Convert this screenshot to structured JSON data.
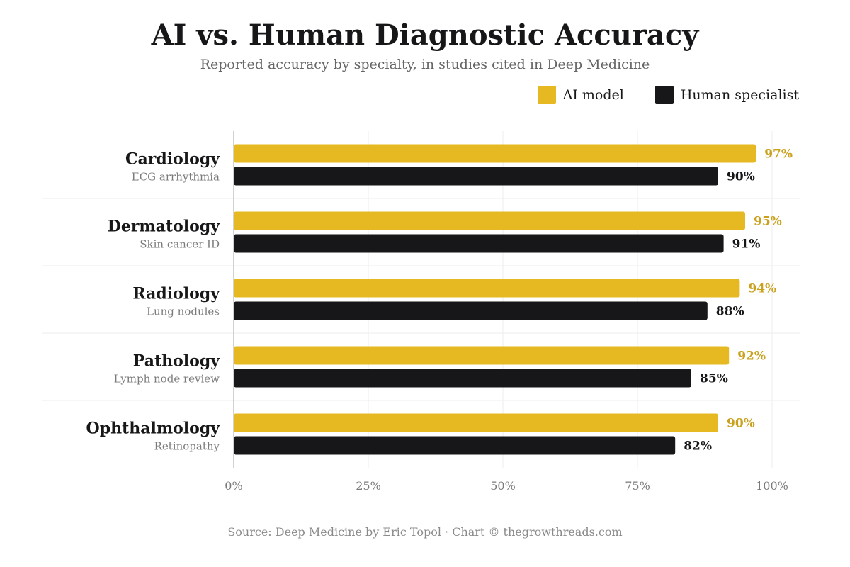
{
  "chart_data": {
    "type": "bar",
    "orientation": "horizontal",
    "title": "AI vs. Human Diagnostic Accuracy",
    "subtitle": "Reported accuracy by specialty, in studies cited in Deep Medicine",
    "categories": [
      "Cardiology",
      "Dermatology",
      "Radiology",
      "Pathology",
      "Ophthalmology"
    ],
    "category_subtitles": [
      "ECG arrhythmia",
      "Skin cancer ID",
      "Lung nodules",
      "Lymph node review",
      "Retinopathy"
    ],
    "series": [
      {
        "name": "AI model",
        "values": [
          97,
          95,
          94,
          92,
          90
        ],
        "color": "#e6b821",
        "label_color": "#c9a11c"
      },
      {
        "name": "Human specialist",
        "values": [
          90,
          91,
          88,
          85,
          82
        ],
        "color": "#17171a",
        "label_color": "#17171a"
      }
    ],
    "value_suffix": "%",
    "xlim": [
      0,
      100
    ],
    "xticks": [
      0,
      25,
      50,
      75,
      100
    ],
    "xtick_labels": [
      "0%",
      "25%",
      "50%",
      "75%",
      "100%"
    ],
    "grid": true,
    "legend_position": "top-right"
  },
  "source": "Source: Deep Medicine by Eric Topol · Chart © thegrowthreads.com"
}
